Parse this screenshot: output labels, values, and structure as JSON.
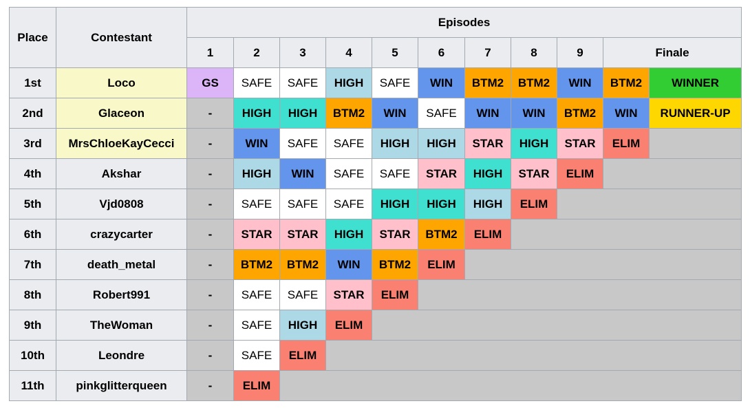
{
  "header": {
    "place": "Place",
    "contestant": "Contestant",
    "episodes": "Episodes",
    "episode_numbers": [
      1,
      2,
      3,
      4,
      5,
      6,
      7,
      8,
      9
    ],
    "finale": "Finale"
  },
  "filler_color": "#c8c8c8",
  "table": {
    "rows": [
      {
        "place": "1st",
        "contestant": "Loco",
        "finalist": true,
        "results": [
          {
            "label": "GS",
            "color": "#dcb4f8"
          },
          {
            "label": "SAFE",
            "color": "#ffffff"
          },
          {
            "label": "SAFE",
            "color": "#ffffff"
          },
          {
            "label": "HIGH",
            "color": "#add8e6"
          },
          {
            "label": "SAFE",
            "color": "#ffffff"
          },
          {
            "label": "WIN",
            "color": "#6495ed"
          },
          {
            "label": "BTM2",
            "color": "#ffa500"
          },
          {
            "label": "BTM2",
            "color": "#ffa500"
          },
          {
            "label": "WIN",
            "color": "#6495ed"
          },
          {
            "label": "BTM2",
            "color": "#ffa500"
          },
          {
            "label": "WINNER",
            "color": "#32cd32"
          }
        ]
      },
      {
        "place": "2nd",
        "contestant": "Glaceon",
        "finalist": true,
        "results": [
          {
            "label": "-",
            "color": "#c8c8c8"
          },
          {
            "label": "HIGH",
            "color": "#40e0d0"
          },
          {
            "label": "HIGH",
            "color": "#40e0d0"
          },
          {
            "label": "BTM2",
            "color": "#ffa500"
          },
          {
            "label": "WIN",
            "color": "#6495ed"
          },
          {
            "label": "SAFE",
            "color": "#ffffff"
          },
          {
            "label": "WIN",
            "color": "#6495ed"
          },
          {
            "label": "WIN",
            "color": "#6495ed"
          },
          {
            "label": "BTM2",
            "color": "#ffa500"
          },
          {
            "label": "WIN",
            "color": "#6495ed"
          },
          {
            "label": "RUNNER-UP",
            "color": "#ffd700"
          }
        ]
      },
      {
        "place": "3rd",
        "contestant": "MrsChloeKayCecci",
        "finalist": true,
        "results": [
          {
            "label": "-",
            "color": "#c8c8c8"
          },
          {
            "label": "WIN",
            "color": "#6495ed"
          },
          {
            "label": "SAFE",
            "color": "#ffffff"
          },
          {
            "label": "SAFE",
            "color": "#ffffff"
          },
          {
            "label": "HIGH",
            "color": "#add8e6"
          },
          {
            "label": "HIGH",
            "color": "#add8e6"
          },
          {
            "label": "STAR",
            "color": "#ffc0cb"
          },
          {
            "label": "HIGH",
            "color": "#40e0d0"
          },
          {
            "label": "STAR",
            "color": "#ffc0cb"
          },
          {
            "label": "ELIM",
            "color": "#fa8072"
          }
        ]
      },
      {
        "place": "4th",
        "contestant": "Akshar",
        "finalist": false,
        "results": [
          {
            "label": "-",
            "color": "#c8c8c8"
          },
          {
            "label": "HIGH",
            "color": "#add8e6"
          },
          {
            "label": "WIN",
            "color": "#6495ed"
          },
          {
            "label": "SAFE",
            "color": "#ffffff"
          },
          {
            "label": "SAFE",
            "color": "#ffffff"
          },
          {
            "label": "STAR",
            "color": "#ffc0cb"
          },
          {
            "label": "HIGH",
            "color": "#40e0d0"
          },
          {
            "label": "STAR",
            "color": "#ffc0cb"
          },
          {
            "label": "ELIM",
            "color": "#fa8072"
          }
        ]
      },
      {
        "place": "5th",
        "contestant": "Vjd0808",
        "finalist": false,
        "results": [
          {
            "label": "-",
            "color": "#c8c8c8"
          },
          {
            "label": "SAFE",
            "color": "#ffffff"
          },
          {
            "label": "SAFE",
            "color": "#ffffff"
          },
          {
            "label": "SAFE",
            "color": "#ffffff"
          },
          {
            "label": "HIGH",
            "color": "#40e0d0"
          },
          {
            "label": "HIGH",
            "color": "#40e0d0"
          },
          {
            "label": "HIGH",
            "color": "#add8e6"
          },
          {
            "label": "ELIM",
            "color": "#fa8072"
          }
        ]
      },
      {
        "place": "6th",
        "contestant": "crazycarter",
        "finalist": false,
        "results": [
          {
            "label": "-",
            "color": "#c8c8c8"
          },
          {
            "label": "STAR",
            "color": "#ffc0cb"
          },
          {
            "label": "STAR",
            "color": "#ffc0cb"
          },
          {
            "label": "HIGH",
            "color": "#40e0d0"
          },
          {
            "label": "STAR",
            "color": "#ffc0cb"
          },
          {
            "label": "BTM2",
            "color": "#ffa500"
          },
          {
            "label": "ELIM",
            "color": "#fa8072"
          }
        ]
      },
      {
        "place": "7th",
        "contestant": "death_metal",
        "finalist": false,
        "results": [
          {
            "label": "-",
            "color": "#c8c8c8"
          },
          {
            "label": "BTM2",
            "color": "#ffa500"
          },
          {
            "label": "BTM2",
            "color": "#ffa500"
          },
          {
            "label": "WIN",
            "color": "#6495ed"
          },
          {
            "label": "BTM2",
            "color": "#ffa500"
          },
          {
            "label": "ELIM",
            "color": "#fa8072"
          }
        ]
      },
      {
        "place": "8th",
        "contestant": "Robert991",
        "finalist": false,
        "results": [
          {
            "label": "-",
            "color": "#c8c8c8"
          },
          {
            "label": "SAFE",
            "color": "#ffffff"
          },
          {
            "label": "SAFE",
            "color": "#ffffff"
          },
          {
            "label": "STAR",
            "color": "#ffc0cb"
          },
          {
            "label": "ELIM",
            "color": "#fa8072"
          }
        ]
      },
      {
        "place": "9th",
        "contestant": "TheWoman",
        "finalist": false,
        "results": [
          {
            "label": "-",
            "color": "#c8c8c8"
          },
          {
            "label": "SAFE",
            "color": "#ffffff"
          },
          {
            "label": "HIGH",
            "color": "#add8e6"
          },
          {
            "label": "ELIM",
            "color": "#fa8072"
          }
        ]
      },
      {
        "place": "10th",
        "contestant": "Leondre",
        "finalist": false,
        "results": [
          {
            "label": "-",
            "color": "#c8c8c8"
          },
          {
            "label": "SAFE",
            "color": "#ffffff"
          },
          {
            "label": "ELIM",
            "color": "#fa8072"
          }
        ]
      },
      {
        "place": "11th",
        "contestant": "pinkglitterqueen",
        "finalist": false,
        "results": [
          {
            "label": "-",
            "color": "#c8c8c8"
          },
          {
            "label": "ELIM",
            "color": "#fa8072"
          }
        ]
      }
    ]
  }
}
